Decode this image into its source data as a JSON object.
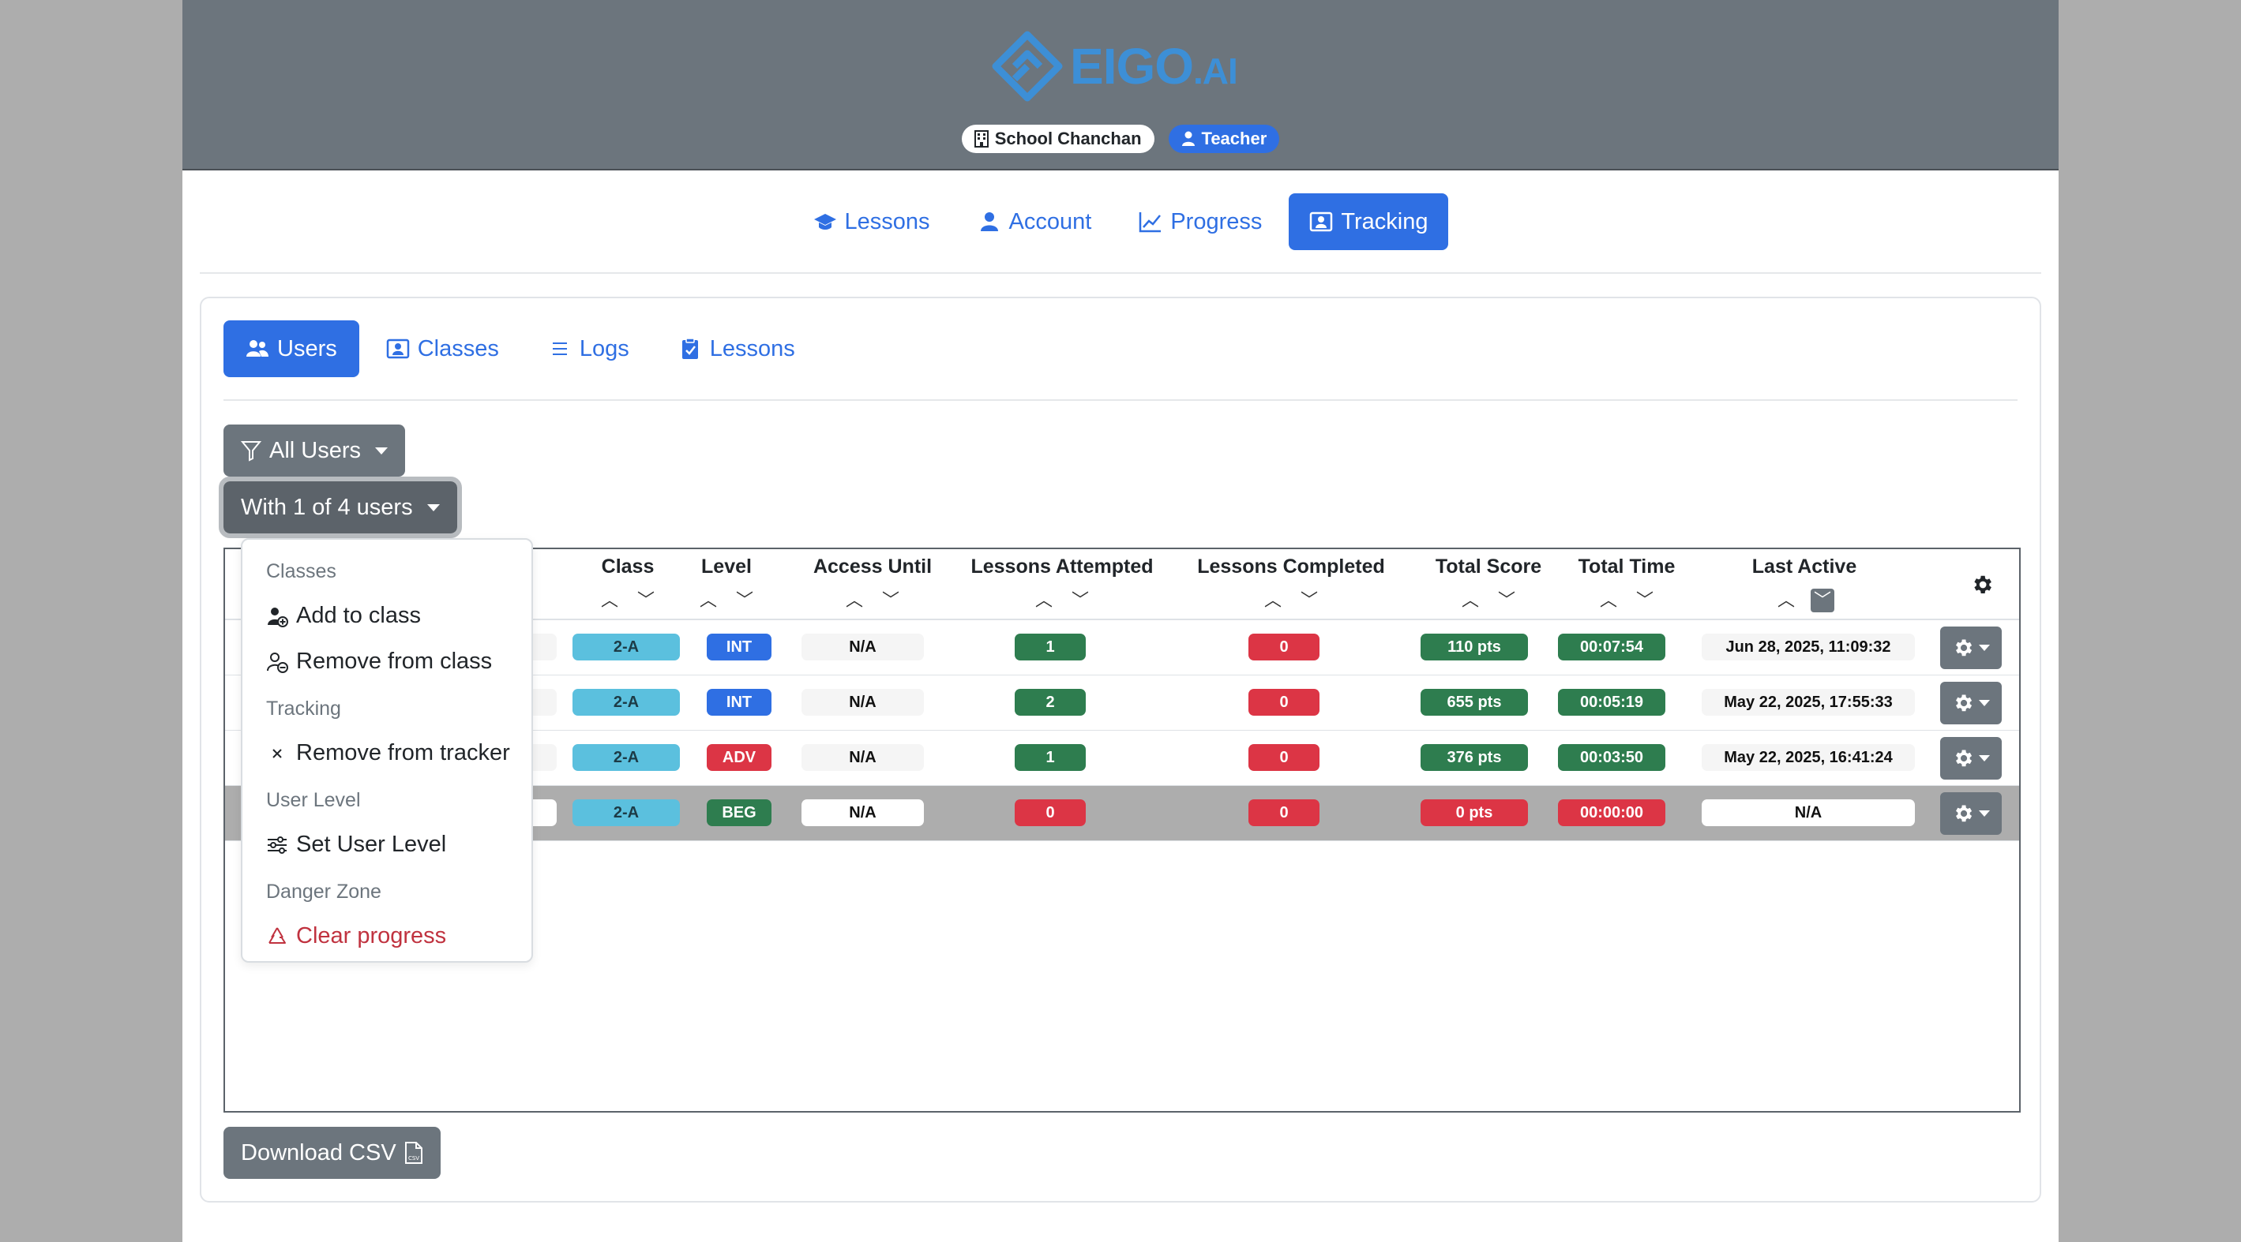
{
  "header": {
    "logo_text": "EIGO",
    "logo_suffix": ".AI",
    "school_badge": "School Chanchan",
    "role_badge": "Teacher"
  },
  "main_nav": [
    {
      "label": "Lessons",
      "icon": "graduation-cap-icon"
    },
    {
      "label": "Account",
      "icon": "person-icon"
    },
    {
      "label": "Progress",
      "icon": "chart-line-icon"
    },
    {
      "label": "Tracking",
      "icon": "person-badge-icon",
      "active": true
    }
  ],
  "sub_nav": [
    {
      "label": "Users",
      "icon": "people-icon",
      "active": true
    },
    {
      "label": "Classes",
      "icon": "person-badge-icon"
    },
    {
      "label": "Logs",
      "icon": "list-icon"
    },
    {
      "label": "Lessons",
      "icon": "clipboard-check-icon"
    }
  ],
  "filters": {
    "all_users_label": "All Users",
    "with_users_label": "With 1 of 4 users"
  },
  "table": {
    "columns": [
      "Class",
      "Level",
      "Access Until",
      "Lessons Attempted",
      "Lessons Completed",
      "Total Score",
      "Total Time",
      "Last Active"
    ],
    "rows": [
      {
        "class": "2-A",
        "level": "INT",
        "access": "N/A",
        "attempted": "1",
        "completed": "0",
        "score": "110 pts",
        "time": "00:07:54",
        "last_active": "Jun 28, 2025, 11:09:32"
      },
      {
        "class": "2-A",
        "level": "INT",
        "access": "N/A",
        "attempted": "2",
        "completed": "0",
        "score": "655 pts",
        "time": "00:05:19",
        "last_active": "May 22, 2025, 17:55:33"
      },
      {
        "class": "2-A",
        "level": "ADV",
        "access": "N/A",
        "attempted": "1",
        "completed": "0",
        "score": "376 pts",
        "time": "00:03:50",
        "last_active": "May 22, 2025, 16:41:24"
      },
      {
        "class": "2-A",
        "level": "BEG",
        "access": "N/A",
        "attempted": "0",
        "completed": "0",
        "score": "0 pts",
        "time": "00:00:00",
        "last_active": "N/A",
        "selected": true
      }
    ]
  },
  "dropdown": {
    "classes_header": "Classes",
    "add_to_class": "Add to class",
    "remove_from_class": "Remove from class",
    "tracking_header": "Tracking",
    "remove_from_tracker": "Remove from tracker",
    "user_level_header": "User Level",
    "set_user_level": "Set User Level",
    "danger_header": "Danger Zone",
    "clear_progress": "Clear progress"
  },
  "download_csv_label": "Download CSV",
  "colors": {
    "primary": "#2f6fe3",
    "header_bg": "#6c757d",
    "success": "#2e7d4f",
    "danger": "#dc3545",
    "info": "#5bc0de"
  }
}
